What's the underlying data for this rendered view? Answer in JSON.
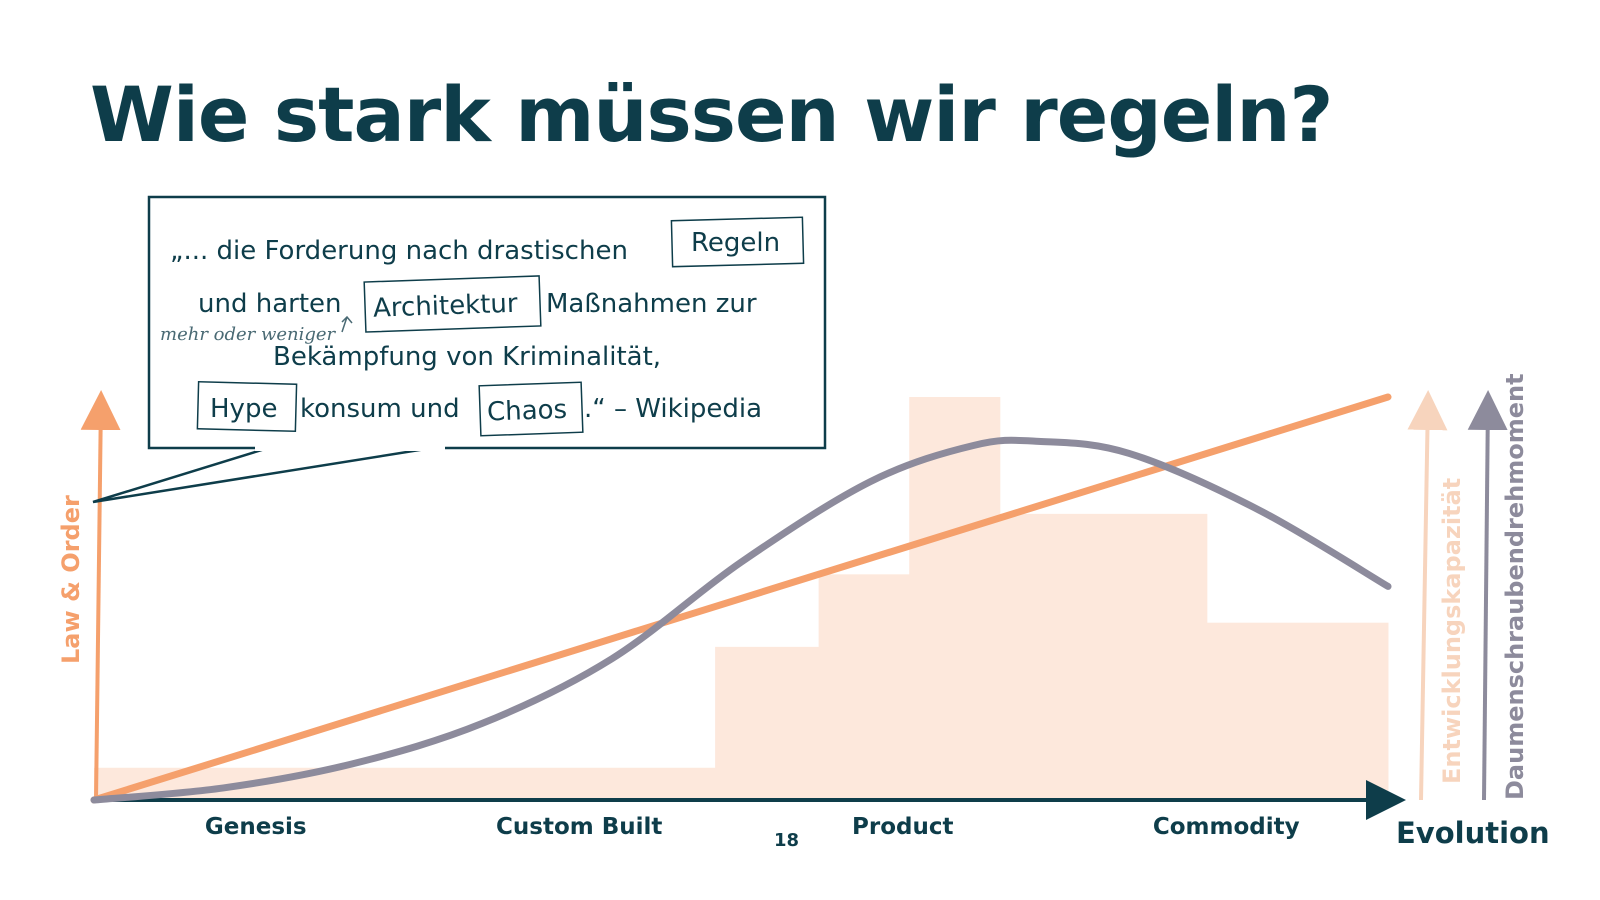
{
  "title": "Wie stark müssen wir regeln?",
  "page_number": "18",
  "quote": {
    "line1_a": "„... die Forderung nach drastischen",
    "word_regeln": "Regeln",
    "line2_a": "und harten",
    "word_architektur": "Architektur",
    "line2_b": "Maßnahmen zur",
    "annotation": "mehr oder weniger",
    "line3": "Bekämpfung von Kriminalität,",
    "word_hype": "Hype",
    "line4_a": "konsum und",
    "word_chaos": "Chaos",
    "line4_b": ".“ – Wikipedia"
  },
  "chart_data": {
    "type": "line",
    "xlabel": "Evolution",
    "categories": [
      "Genesis",
      "Custom Built",
      "Product",
      "Commodity"
    ],
    "xlim": [
      0,
      1
    ],
    "ylim": [
      0,
      1
    ],
    "y_axes": [
      {
        "label": "Law & Order",
        "color": "#f5a06c"
      },
      {
        "label": "Entwicklungskapazität",
        "color": "#f7d4bd"
      },
      {
        "label": "Daumenschraubendrehmoment",
        "color": "#8d8b9c"
      }
    ],
    "series": [
      {
        "name": "Law & Order",
        "color": "#f5a06c",
        "kind": "line",
        "points": [
          [
            0,
            0
          ],
          [
            1,
            1
          ]
        ]
      },
      {
        "name": "Daumenschraubendrehmoment",
        "color": "#8d8b9c",
        "kind": "curve",
        "points": [
          [
            0,
            0
          ],
          [
            0.1,
            0.03
          ],
          [
            0.2,
            0.09
          ],
          [
            0.3,
            0.19
          ],
          [
            0.4,
            0.35
          ],
          [
            0.5,
            0.59
          ],
          [
            0.6,
            0.79
          ],
          [
            0.68,
            0.88
          ],
          [
            0.73,
            0.89
          ],
          [
            0.8,
            0.86
          ],
          [
            0.9,
            0.72
          ],
          [
            1,
            0.53
          ]
        ]
      },
      {
        "name": "Entwicklungskapazität",
        "color": "#fde8dc",
        "kind": "step",
        "steps": [
          [
            0,
            0.48,
            0.08
          ],
          [
            0.48,
            0.56,
            0.38
          ],
          [
            0.56,
            0.63,
            0.56
          ],
          [
            0.63,
            0.7,
            1.0
          ],
          [
            0.7,
            0.86,
            0.71
          ],
          [
            0.86,
            1,
            0.44
          ]
        ]
      }
    ],
    "grid": false,
    "legend": "none"
  }
}
